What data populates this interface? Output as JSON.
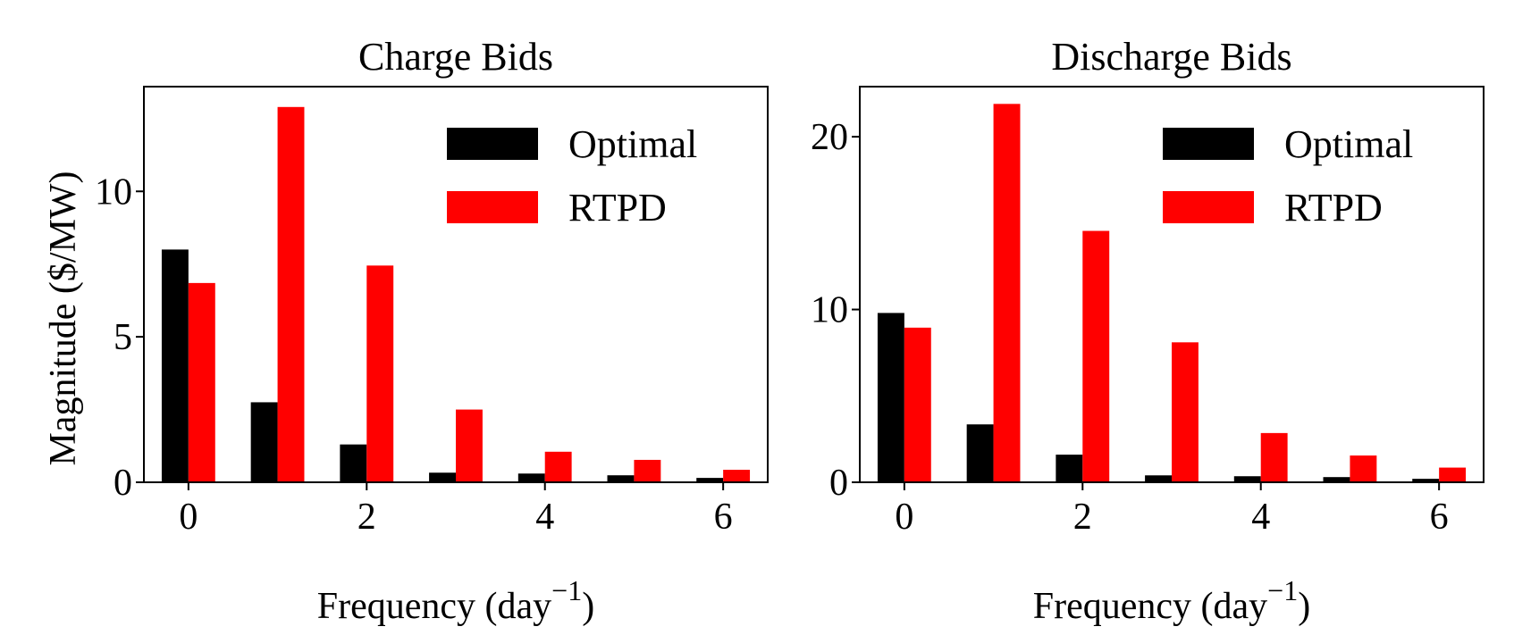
{
  "chart_data": [
    {
      "type": "bar",
      "title": "Charge Bids",
      "ylabel": "Magnitude ($/MW)",
      "xlabel_main": "Frequency (day",
      "xlabel_sup": "−1",
      "xlabel_close": ")",
      "x": [
        0,
        1,
        2,
        3,
        4,
        5,
        6
      ],
      "xlim": [
        -0.5,
        6.5
      ],
      "ylim": [
        0,
        13.6
      ],
      "xticks": [
        0,
        2,
        4,
        6
      ],
      "xtick_labels": [
        "0",
        "2",
        "4",
        "6"
      ],
      "yticks": [
        0,
        5,
        10
      ],
      "ytick_labels": [
        "0",
        "5",
        "10"
      ],
      "legend_position": "top-right",
      "series": [
        {
          "name": "Optimal",
          "color": "#000000",
          "values": [
            8.0,
            2.75,
            1.3,
            0.33,
            0.3,
            0.24,
            0.15
          ]
        },
        {
          "name": "RTPD",
          "color": "#ff0000",
          "values": [
            6.85,
            12.9,
            7.45,
            2.5,
            1.05,
            0.77,
            0.43
          ]
        }
      ]
    },
    {
      "type": "bar",
      "title": "Discharge Bids",
      "ylabel": "",
      "xlabel_main": "Frequency (day",
      "xlabel_sup": "−1",
      "xlabel_close": ")",
      "x": [
        0,
        1,
        2,
        3,
        4,
        5,
        6
      ],
      "xlim": [
        -0.5,
        6.5
      ],
      "ylim": [
        0,
        22.9
      ],
      "xticks": [
        0,
        2,
        4,
        6
      ],
      "xtick_labels": [
        "0",
        "2",
        "4",
        "6"
      ],
      "yticks": [
        0,
        10,
        20
      ],
      "ytick_labels": [
        "0",
        "10",
        "20"
      ],
      "legend_position": "top-right",
      "series": [
        {
          "name": "Optimal",
          "color": "#000000",
          "values": [
            9.8,
            3.35,
            1.6,
            0.4,
            0.35,
            0.3,
            0.2
          ]
        },
        {
          "name": "RTPD",
          "color": "#ff0000",
          "values": [
            8.95,
            21.9,
            14.55,
            8.1,
            2.85,
            1.55,
            0.85
          ]
        }
      ]
    }
  ]
}
